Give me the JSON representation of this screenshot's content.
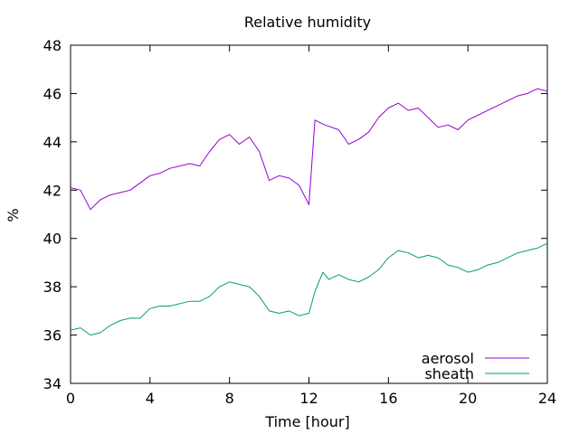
{
  "chart_data": {
    "type": "line",
    "title": "Relative humidity",
    "xlabel": "Time [hour]",
    "ylabel": "%",
    "xlim": [
      0,
      24
    ],
    "ylim": [
      34,
      48
    ],
    "x_ticks": [
      0,
      4,
      8,
      12,
      16,
      20,
      24
    ],
    "y_ticks": [
      34,
      36,
      38,
      40,
      42,
      44,
      46,
      48
    ],
    "grid": false,
    "legend_position": "bottom-right",
    "series": [
      {
        "name": "aerosol",
        "color": "#9400d3",
        "points": [
          [
            0,
            42.1
          ],
          [
            0.5,
            42.0
          ],
          [
            1,
            41.2
          ],
          [
            1.5,
            41.6
          ],
          [
            2,
            41.8
          ],
          [
            2.5,
            41.9
          ],
          [
            3,
            42.0
          ],
          [
            3.5,
            42.3
          ],
          [
            4,
            42.6
          ],
          [
            4.5,
            42.7
          ],
          [
            5,
            42.9
          ],
          [
            5.5,
            43.0
          ],
          [
            6,
            43.1
          ],
          [
            6.5,
            43.0
          ],
          [
            7,
            43.6
          ],
          [
            7.5,
            44.1
          ],
          [
            8,
            44.3
          ],
          [
            8.5,
            43.9
          ],
          [
            9,
            44.2
          ],
          [
            9.5,
            43.6
          ],
          [
            10,
            42.4
          ],
          [
            10.5,
            42.6
          ],
          [
            11,
            42.5
          ],
          [
            11.5,
            42.2
          ],
          [
            12,
            41.4
          ],
          [
            12.3,
            44.9
          ],
          [
            12.8,
            44.7
          ],
          [
            13.5,
            44.5
          ],
          [
            14,
            43.9
          ],
          [
            14.5,
            44.1
          ],
          [
            15,
            44.4
          ],
          [
            15.5,
            45.0
          ],
          [
            16,
            45.4
          ],
          [
            16.5,
            45.6
          ],
          [
            17,
            45.3
          ],
          [
            17.5,
            45.4
          ],
          [
            18,
            45.0
          ],
          [
            18.5,
            44.6
          ],
          [
            19,
            44.7
          ],
          [
            19.5,
            44.5
          ],
          [
            20,
            44.9
          ],
          [
            20.5,
            45.1
          ],
          [
            21,
            45.3
          ],
          [
            21.5,
            45.5
          ],
          [
            22,
            45.7
          ],
          [
            22.5,
            45.9
          ],
          [
            23,
            46.0
          ],
          [
            23.5,
            46.2
          ],
          [
            24,
            46.1
          ]
        ]
      },
      {
        "name": "sheath",
        "color": "#009e73",
        "points": [
          [
            0,
            36.2
          ],
          [
            0.5,
            36.3
          ],
          [
            1,
            36.0
          ],
          [
            1.5,
            36.1
          ],
          [
            2,
            36.4
          ],
          [
            2.5,
            36.6
          ],
          [
            3,
            36.7
          ],
          [
            3.5,
            36.7
          ],
          [
            4,
            37.1
          ],
          [
            4.5,
            37.2
          ],
          [
            5,
            37.2
          ],
          [
            5.5,
            37.3
          ],
          [
            6,
            37.4
          ],
          [
            6.5,
            37.4
          ],
          [
            7,
            37.6
          ],
          [
            7.5,
            38.0
          ],
          [
            8,
            38.2
          ],
          [
            8.5,
            38.1
          ],
          [
            9,
            38.0
          ],
          [
            9.5,
            37.6
          ],
          [
            10,
            37.0
          ],
          [
            10.5,
            36.9
          ],
          [
            11,
            37.0
          ],
          [
            11.5,
            36.8
          ],
          [
            12,
            36.9
          ],
          [
            12.3,
            37.8
          ],
          [
            12.7,
            38.6
          ],
          [
            13,
            38.3
          ],
          [
            13.5,
            38.5
          ],
          [
            14,
            38.3
          ],
          [
            14.5,
            38.2
          ],
          [
            15,
            38.4
          ],
          [
            15.5,
            38.7
          ],
          [
            16,
            39.2
          ],
          [
            16.5,
            39.5
          ],
          [
            17,
            39.4
          ],
          [
            17.5,
            39.2
          ],
          [
            18,
            39.3
          ],
          [
            18.5,
            39.2
          ],
          [
            19,
            38.9
          ],
          [
            19.5,
            38.8
          ],
          [
            20,
            38.6
          ],
          [
            20.5,
            38.7
          ],
          [
            21,
            38.9
          ],
          [
            21.5,
            39.0
          ],
          [
            22,
            39.2
          ],
          [
            22.5,
            39.4
          ],
          [
            23,
            39.5
          ],
          [
            23.5,
            39.6
          ],
          [
            24,
            39.8
          ]
        ]
      }
    ]
  }
}
